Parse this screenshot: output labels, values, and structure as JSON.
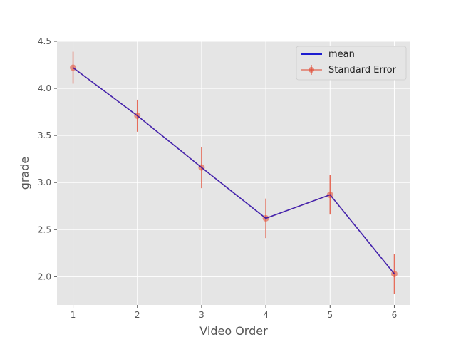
{
  "chart_data": {
    "type": "line",
    "xlabel": "Video Order",
    "ylabel": "grade",
    "xlim": [
      0.75,
      6.25
    ],
    "ylim": [
      1.7,
      4.5
    ],
    "x_ticks": [
      1,
      2,
      3,
      4,
      5,
      6
    ],
    "y_ticks": [
      2.0,
      2.5,
      3.0,
      3.5,
      4.0,
      4.5
    ],
    "grid": true,
    "legend_position": "top-right",
    "x": [
      1,
      2,
      3,
      4,
      5,
      6
    ],
    "series": [
      {
        "name": "mean",
        "kind": "line",
        "color": "#0000cc",
        "values": [
          4.22,
          3.71,
          3.16,
          2.62,
          2.87,
          2.03
        ]
      },
      {
        "name": "Standard Error",
        "kind": "errorbar",
        "color": "#e24a33",
        "values": [
          4.22,
          3.71,
          3.16,
          2.62,
          2.87,
          2.03
        ],
        "error": [
          0.17,
          0.17,
          0.22,
          0.21,
          0.21,
          0.21
        ]
      }
    ]
  }
}
